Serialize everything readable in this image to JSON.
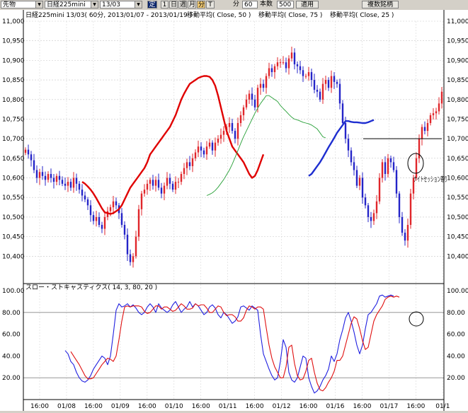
{
  "toolbar": {
    "market_select": "先物",
    "symbol_select": "日経225mini",
    "contract_select": "13/03",
    "fixed_button": "定",
    "bar_buttons": [
      "1",
      "日",
      "週",
      "月",
      "分",
      "T"
    ],
    "minute_label": "分",
    "minute_value": "60",
    "count_label": "本数",
    "count_value": "500",
    "apply_button": "適用",
    "multi_symbol_button": "複数銘柄"
  },
  "header": {
    "symbol_info": "日経225mini 13/03( 60分, 2013/01/07 - 2013/01/19 )",
    "ma_labels": [
      "移動平均( Close, 50 )",
      "移動平均( Close, 75 )",
      "移動平均( Close, 25 )"
    ]
  },
  "annotation": {
    "night_session": "ナイトセッション寄り"
  },
  "stochastic_label": "スロー・ストキャスティクス( 14, 3, 80, 20 )",
  "colors": {
    "up_candle": "#e0262b",
    "down_candle": "#2424c8",
    "ma25": "#e00000",
    "ma50": "#1e2ed0",
    "ma75": "#28a038",
    "stoch_k": "#2020e0",
    "stoch_d": "#e01010",
    "grid": "#888888"
  },
  "chart_data": [
    {
      "type": "candlestick",
      "title": "日経225mini 13/03( 60分, 2013/01/07 - 2013/01/19 )",
      "ylim": [
        10350,
        11000
      ],
      "y_ticks": [
        "11,000",
        "10,950",
        "10,900",
        "10,850",
        "10,800",
        "10,750",
        "10,700",
        "10,650",
        "10,600",
        "10,550",
        "10,500",
        "10,450",
        "10,400"
      ],
      "x_tick_labels": [
        "16:00",
        "01/08",
        "16:00",
        "01/09",
        "16:00",
        "01/10",
        "16:00",
        "01/11",
        "16:00",
        "01/12",
        "16:00",
        "01/16",
        "16:00",
        "01/17",
        "16:00",
        "01/1"
      ],
      "closes": [
        10672,
        10660,
        10645,
        10620,
        10600,
        10615,
        10605,
        10595,
        10610,
        10600,
        10590,
        10605,
        10595,
        10585,
        10580,
        10590,
        10575,
        10600,
        10585,
        10570,
        10555,
        10545,
        10530,
        10505,
        10490,
        10500,
        10480,
        10470,
        10500,
        10515,
        10525,
        10540,
        10530,
        10510,
        10480,
        10455,
        10405,
        10385,
        10400,
        10450,
        10520,
        10560,
        10570,
        10585,
        10595,
        10580,
        10595,
        10575,
        10560,
        10580,
        10600,
        10585,
        10570,
        10590,
        10590,
        10610,
        10625,
        10640,
        10630,
        10650,
        10665,
        10680,
        10670,
        10660,
        10680,
        10690,
        10670,
        10690,
        10700,
        10710,
        10720,
        10730,
        10740,
        10720,
        10700,
        10740,
        10760,
        10780,
        10800,
        10815,
        10800,
        10780,
        10830,
        10840,
        10830,
        10860,
        10880,
        10870,
        10885,
        10895,
        10895,
        10895,
        10880,
        10905,
        10920,
        10890,
        10885,
        10875,
        10860,
        10860,
        10870,
        10850,
        10825,
        10820,
        10800,
        10840,
        10850,
        10830,
        10860,
        10845,
        10840,
        10790,
        10740,
        10700,
        10670,
        10640,
        10620,
        10580,
        10600,
        10550,
        10530,
        10500,
        10490,
        10510,
        10540,
        10600,
        10640,
        10610,
        10650,
        10640,
        10620,
        10560,
        10500,
        10460,
        10440,
        10480,
        10560,
        10600,
        10650,
        10700,
        10730,
        10720,
        10740,
        10760,
        10765,
        10770,
        10790,
        10820
      ],
      "series": [
        {
          "name": "移動平均( Close, 25 )",
          "start": 20,
          "values": [
            10590,
            10585,
            10578,
            10570,
            10560,
            10548,
            10535,
            10522,
            10512,
            10510,
            10508,
            10510,
            10515,
            10520,
            10530,
            10545,
            10560,
            10575,
            10585,
            10595,
            10605,
            10615,
            10625,
            10640,
            10660,
            10670,
            10680,
            10690,
            10700,
            10710,
            10720,
            10730,
            10745,
            10760,
            10780,
            10800,
            10815,
            10828,
            10840,
            10845,
            10850,
            10855,
            10858,
            10860,
            10860,
            10858,
            10850,
            10835,
            10810,
            10780,
            10750,
            10720,
            10700,
            10680,
            10670,
            10660,
            10650,
            10640,
            10625,
            10610,
            10600,
            10605,
            10620,
            10640,
            10660
          ]
        },
        {
          "name": "移動平均( Close, 50 )",
          "start": 100,
          "values": [
            10605,
            10610,
            10620,
            10630,
            10640,
            10652,
            10665,
            10678,
            10690,
            10702,
            10715,
            10725,
            10735,
            10745,
            10745,
            10743,
            10742,
            10742,
            10741,
            10740,
            10740,
            10742,
            10745,
            10748
          ]
        },
        {
          "name": "移動平均( Close, 75 )",
          "start": 64,
          "values": [
            10555,
            10558,
            10562,
            10568,
            10576,
            10586,
            10596,
            10608,
            10620,
            10635,
            10652,
            10670,
            10688,
            10705,
            10720,
            10735,
            10750,
            10765,
            10778,
            10790,
            10800,
            10810,
            10810,
            10805,
            10800,
            10795,
            10785,
            10777,
            10770,
            10762,
            10755,
            10750,
            10748,
            10745,
            10742,
            10740,
            10738,
            10735,
            10730,
            10725,
            10715,
            10705,
            10702
          ]
        }
      ],
      "horizontal_lines": [
        10700
      ]
    },
    {
      "type": "line",
      "title": "スロー・ストキャスティクス( 14, 3, 80, 20 )",
      "ylim": [
        0,
        100
      ],
      "y_ticks": [
        "100.00",
        "80.00",
        "60.00",
        "40.00",
        "20.00"
      ],
      "reference_lines": [
        80,
        20
      ],
      "series": [
        {
          "name": "%K",
          "start": 14,
          "values": [
            45,
            42,
            35,
            32,
            25,
            20,
            17,
            16,
            18,
            22,
            28,
            32,
            36,
            40,
            38,
            32,
            40,
            60,
            82,
            88,
            85,
            86,
            88,
            85,
            87,
            84,
            80,
            78,
            80,
            85,
            88,
            85,
            80,
            88,
            84,
            82,
            80,
            82,
            87,
            90,
            85,
            80,
            83,
            85,
            90,
            85,
            88,
            86,
            82,
            78,
            80,
            85,
            87,
            84,
            78,
            75,
            80,
            78,
            74,
            70,
            72,
            76,
            85,
            86,
            84,
            82,
            86,
            84,
            82,
            60,
            42,
            35,
            28,
            22,
            18,
            20,
            35,
            55,
            48,
            25,
            18,
            16,
            20,
            30,
            40,
            38,
            20,
            12,
            6,
            8,
            12,
            18,
            22,
            28,
            40,
            35,
            42,
            55,
            64,
            75,
            80,
            72,
            62,
            50,
            42,
            50,
            65,
            78,
            80,
            84,
            88,
            95,
            96,
            94,
            95,
            96,
            95
          ]
        },
        {
          "name": "%D",
          "start": 16,
          "values": [
            44,
            40,
            36,
            32,
            27,
            22,
            19,
            19,
            20,
            24,
            28,
            32,
            35,
            38,
            37,
            35,
            40,
            55,
            72,
            85,
            86,
            85,
            86,
            86,
            86,
            85,
            81,
            79,
            80,
            83,
            86,
            86,
            83,
            85,
            85,
            83,
            81,
            82,
            85,
            88,
            86,
            83,
            83,
            84,
            88,
            86,
            87,
            87,
            84,
            80,
            80,
            83,
            86,
            85,
            80,
            77,
            78,
            78,
            76,
            72,
            72,
            75,
            82,
            86,
            85,
            83,
            85,
            85,
            83,
            66,
            50,
            38,
            30,
            25,
            20,
            20,
            30,
            48,
            50,
            33,
            22,
            18,
            19,
            26,
            36,
            38,
            25,
            15,
            9,
            8,
            11,
            16,
            20,
            26,
            36,
            36,
            40,
            50,
            60,
            70,
            76,
            74,
            65,
            54,
            46,
            48,
            60,
            72,
            78,
            82,
            86,
            92,
            94,
            95,
            94,
            95,
            94
          ]
        }
      ]
    }
  ]
}
